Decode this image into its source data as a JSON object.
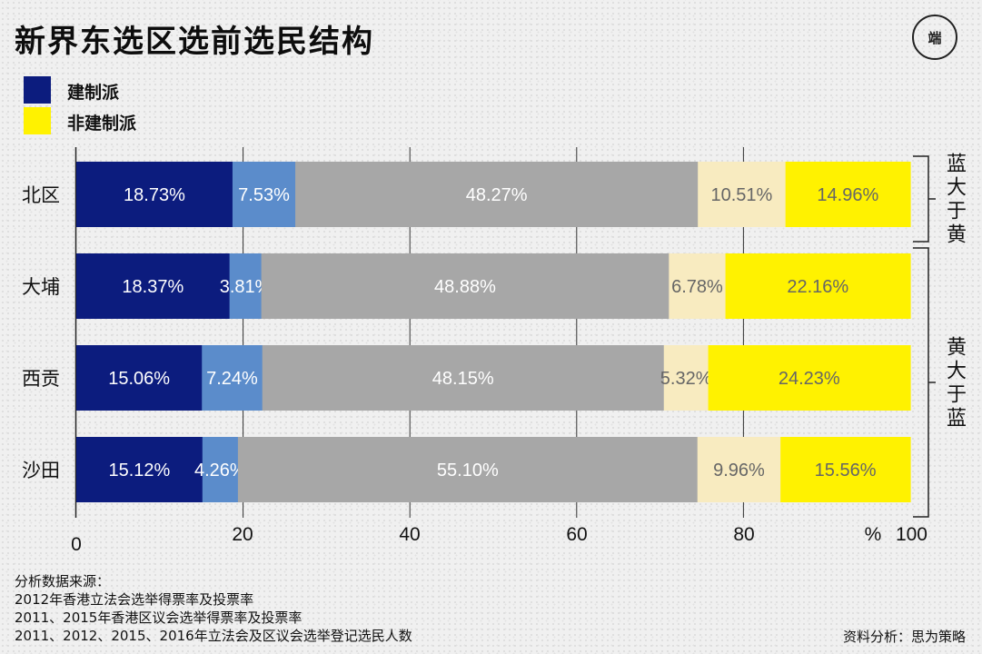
{
  "header": {
    "title": "新界东选区选前选民结构",
    "logo_text": "端"
  },
  "legend": [
    {
      "label": "建制派",
      "color": "#0c1c7e"
    },
    {
      "label": "非建制派",
      "color": "#fff200"
    }
  ],
  "chart_data": {
    "type": "bar",
    "orientation": "horizontal",
    "stacked": true,
    "categories": [
      "北区",
      "大埔",
      "西贡",
      "沙田"
    ],
    "series": [
      {
        "values": [
          18.73,
          18.37,
          15.06,
          15.12
        ],
        "color": "#0c1c7e",
        "label_color": "#ffffff"
      },
      {
        "values": [
          7.53,
          3.81,
          7.24,
          4.26
        ],
        "color": "#5b8ccb",
        "label_color": "#ffffff"
      },
      {
        "values": [
          48.27,
          48.88,
          48.15,
          55.1
        ],
        "color": "#a7a7a7",
        "label_color": "#ffffff"
      },
      {
        "values": [
          10.51,
          6.78,
          5.32,
          9.96
        ],
        "color": "#f8ebc0",
        "label_color": "#666666"
      },
      {
        "values": [
          14.96,
          22.16,
          24.23,
          15.56
        ],
        "color": "#fff200",
        "label_color": "#666666"
      }
    ],
    "data_labels": [
      [
        "18.73%",
        "7.53%",
        "48.27%",
        "10.51%",
        "14.96%"
      ],
      [
        "18.37%",
        "3.81%",
        "48.88%",
        "6.78%",
        "22.16%"
      ],
      [
        "15.06%",
        "7.24%",
        "48.15%",
        "5.32%",
        "24.23%"
      ],
      [
        "15.12%",
        "4.26%",
        "55.10%",
        "9.96%",
        "15.56%"
      ]
    ],
    "x_ticks": [
      "0",
      "20",
      "40",
      "60",
      "80",
      "100"
    ],
    "x_unit": "%",
    "xlim": [
      0,
      100
    ],
    "grid": "vertical",
    "brackets": [
      {
        "text": "蓝大于黄",
        "rows": [
          0
        ]
      },
      {
        "text": "黄大于蓝",
        "rows": [
          1,
          2,
          3
        ]
      }
    ]
  },
  "notes": {
    "heading": "分析数据来源：",
    "lines": [
      "2012年香港立法会选举得票率及投票率",
      "2011、2015年香港区议会选举得票率及投票率",
      "2011、2012、2015、2016年立法会及区议会选举登记选民人数"
    ]
  },
  "credit": "资料分析：思为策略"
}
